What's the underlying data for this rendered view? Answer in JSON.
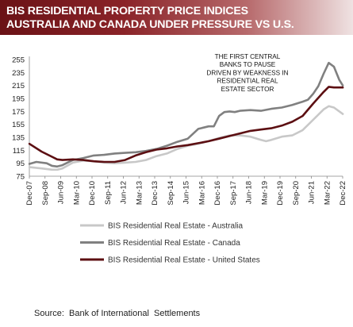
{
  "header": {
    "title_line1": "BIS RESIDENTIAL PROPERTY PRICE INDICES",
    "title_line2": "AUSTRALIA AND CANADA UNDER PRESSURE VS U.S."
  },
  "source": "Source:  Bank of International  Settlements",
  "colors": {
    "banner_dark": "#6a1216",
    "australia": "#c8c8c8",
    "canada": "#808080",
    "united_states": "#5c0f12"
  },
  "chart_data": {
    "type": "line",
    "ylim": [
      75,
      260
    ],
    "yticks": [
      75,
      95,
      115,
      135,
      155,
      175,
      195,
      215,
      235,
      255
    ],
    "xlim": [
      2007.917,
      2022.917
    ],
    "xticks": [
      "Dec-07",
      "Sep-08",
      "Jun-09",
      "Mar-10",
      "Dec-10",
      "Sep-11",
      "Jun-12",
      "Mar-13",
      "Dec-13",
      "Sep-14",
      "Jun-15",
      "Mar-16",
      "Dec-16",
      "Sep-17",
      "Jun-18",
      "Mar-19",
      "Dec-19",
      "Sep-20",
      "Jun-21",
      "Mar-22",
      "Dec-22"
    ],
    "grid": false,
    "legend_position": "bottom",
    "annotation": [
      "THE FIRST CENTRAL",
      "BANKS TO PAUSE",
      "DRIVEN BY WEAKNESS IN",
      "RESIDENTIAL REAL",
      "ESTATE SECTOR"
    ],
    "series": [
      {
        "name": "BIS Residential Real Estate - Australia",
        "color": "#c8c8c8",
        "x": [
          2007.92,
          2008.5,
          2009.0,
          2009.25,
          2009.5,
          2010.0,
          2010.5,
          2011.0,
          2011.5,
          2012.0,
          2012.5,
          2013.0,
          2013.5,
          2014.0,
          2014.5,
          2015.0,
          2015.5,
          2016.0,
          2016.5,
          2017.0,
          2017.5,
          2018.0,
          2018.5,
          2019.0,
          2019.25,
          2019.5,
          2020.0,
          2020.5,
          2021.0,
          2021.5,
          2022.0,
          2022.25,
          2022.5,
          2022.92
        ],
        "y": [
          89,
          87,
          85,
          85,
          87,
          96,
          99,
          98,
          96,
          95,
          96,
          97,
          100,
          106,
          110,
          117,
          122,
          125,
          129,
          134,
          138,
          138,
          136,
          131,
          129,
          131,
          136,
          138,
          146,
          162,
          178,
          183,
          181,
          171
        ]
      },
      {
        "name": "BIS Residential Real Estate - Canada",
        "color": "#808080",
        "x": [
          2007.92,
          2008.25,
          2008.75,
          2009.0,
          2009.25,
          2009.5,
          2010.0,
          2010.5,
          2011.0,
          2011.5,
          2012.0,
          2012.5,
          2013.0,
          2013.5,
          2014.0,
          2014.5,
          2015.0,
          2015.5,
          2016.0,
          2016.5,
          2016.75,
          2017.0,
          2017.25,
          2017.5,
          2017.75,
          2018.0,
          2018.5,
          2019.0,
          2019.5,
          2020.0,
          2020.5,
          2021.0,
          2021.25,
          2021.5,
          2021.75,
          2022.0,
          2022.25,
          2022.5,
          2022.75,
          2022.92
        ],
        "y": [
          94,
          97,
          95,
          91,
          90,
          92,
          100,
          103,
          107,
          108,
          110,
          111,
          112,
          114,
          117,
          122,
          128,
          133,
          148,
          152,
          152,
          168,
          174,
          175,
          174,
          176,
          177,
          176,
          179,
          181,
          185,
          190,
          193,
          202,
          214,
          233,
          250,
          244,
          224,
          215
        ]
      },
      {
        "name": "BIS Residential Real Estate - United States",
        "color": "#5c0f12",
        "x": [
          2007.92,
          2008.5,
          2009.0,
          2009.25,
          2009.5,
          2010.0,
          2010.5,
          2011.0,
          2011.5,
          2012.0,
          2012.5,
          2013.0,
          2013.5,
          2014.0,
          2014.5,
          2015.0,
          2015.5,
          2016.0,
          2016.5,
          2017.0,
          2017.5,
          2018.0,
          2018.5,
          2019.0,
          2019.5,
          2020.0,
          2020.5,
          2021.0,
          2021.5,
          2022.0,
          2022.25,
          2022.5,
          2022.92
        ],
        "y": [
          125,
          113,
          105,
          101,
          100,
          101,
          100,
          98,
          97,
          97,
          100,
          107,
          112,
          116,
          118,
          121,
          123,
          126,
          129,
          133,
          137,
          141,
          145,
          147,
          149,
          153,
          159,
          168,
          187,
          205,
          213,
          212,
          212
        ]
      }
    ]
  }
}
